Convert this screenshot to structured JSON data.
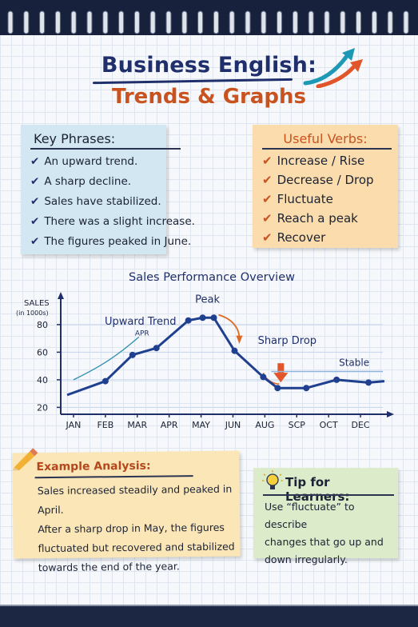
{
  "title": {
    "line1": "Business English:",
    "line2": "Trends & Graphs"
  },
  "key_phrases": {
    "heading": "Key Phrases:",
    "items": [
      "An upward trend.",
      "A sharp decline.",
      "Sales have stabilized.",
      "There was a slight increase.",
      "The figures peaked in June."
    ]
  },
  "useful_verbs": {
    "heading": "Useful Verbs:",
    "items": [
      "Increase / Rise",
      "Decrease / Drop",
      "Fluctuate",
      "Reach a peak",
      "Recover"
    ]
  },
  "chart_data": {
    "type": "line",
    "title": "Sales Performance Overview",
    "ylabel": "SALES",
    "ylabel_unit": "(in 1000s)",
    "xlabel": "",
    "ylim": [
      15,
      95
    ],
    "yticks": [
      20,
      40,
      60,
      80
    ],
    "x_labels": [
      "JAN",
      "FEB",
      "MAR",
      "APR",
      "MAY",
      "JUN",
      "AUG",
      "SCP",
      "OCT",
      "DEC"
    ],
    "x_label_positions": [
      1,
      2,
      3,
      4,
      5,
      6,
      7,
      8,
      9,
      10
    ],
    "xlim": [
      0.6,
      10.8
    ],
    "series": [
      {
        "x": [
          0.8,
          2,
          2.85,
          3.6,
          4.6,
          5.05,
          5.4,
          6.05,
          6.95,
          7.4,
          8.3,
          9.25,
          10.25,
          10.75
        ],
        "values": [
          29,
          39,
          58,
          63,
          83,
          85,
          85,
          61,
          42,
          34,
          34,
          40,
          38,
          39
        ]
      }
    ],
    "annotations": {
      "upward_trend": "Upward Trend",
      "apr_tag": "APR",
      "peak": "Peak",
      "sharp_drop": "Sharp Drop",
      "stable": "Stable"
    },
    "grid": true,
    "colors": {
      "line": "#1f3f8f",
      "accent": "#e06a25",
      "drop_arrow": "#e2542a"
    }
  },
  "example_analysis": {
    "heading": "Example Analysis:",
    "lines": [
      "Sales increased steadily and peaked in April.",
      "After a sharp drop in May, the figures",
      "fluctuated but recovered and stabilized",
      "towards the end of the year."
    ]
  },
  "tip": {
    "heading": "Tip for Learners:",
    "lines": [
      "Use “fluctuate” to describe",
      "changes that go up and",
      "down irregularly."
    ]
  },
  "icons": {
    "title_arrows": "rising-arrows-icon",
    "pencil": "pencil-icon",
    "bulb": "lightbulb-icon",
    "check": "checkmark-icon"
  }
}
